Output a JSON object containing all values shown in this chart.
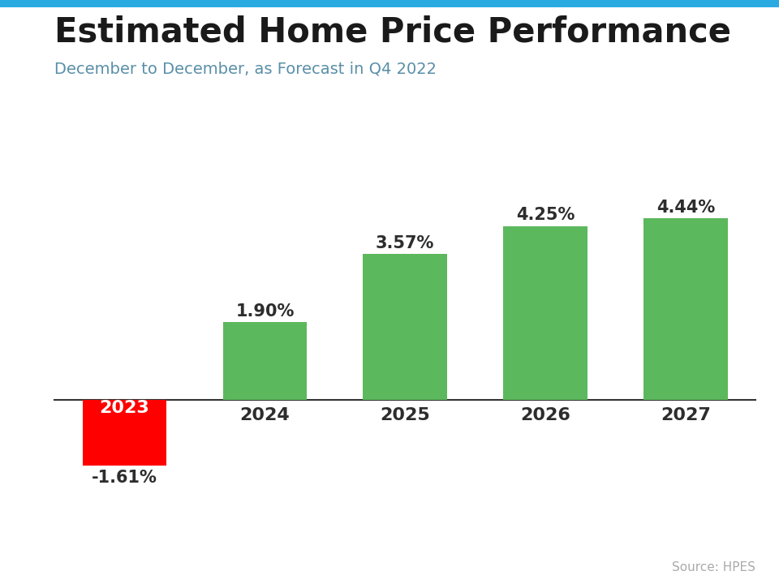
{
  "title": "Estimated Home Price Performance",
  "subtitle": "December to December, as Forecast in Q4 2022",
  "source": "Source: HPES",
  "categories": [
    "2023",
    "2024",
    "2025",
    "2026",
    "2027"
  ],
  "values": [
    -1.61,
    1.9,
    3.57,
    4.25,
    4.44
  ],
  "labels": [
    "-1.61%",
    "1.90%",
    "3.57%",
    "4.25%",
    "4.44%"
  ],
  "bar_colors": [
    "#ff0000",
    "#5cb85c",
    "#5cb85c",
    "#5cb85c",
    "#5cb85c"
  ],
  "label_colors": [
    "#2d2d2d",
    "#2d2d2d",
    "#2d2d2d",
    "#2d2d2d",
    "#2d2d2d"
  ],
  "title_color": "#1a1a1a",
  "subtitle_color": "#5a8fa8",
  "category_2023_text_color": "#ffffff",
  "top_bar_color": "#29abe2",
  "background_color": "#ffffff",
  "title_fontsize": 30,
  "subtitle_fontsize": 14,
  "label_fontsize": 15,
  "tick_fontsize": 16,
  "source_fontsize": 11,
  "ylim": [
    -2.8,
    5.5
  ]
}
